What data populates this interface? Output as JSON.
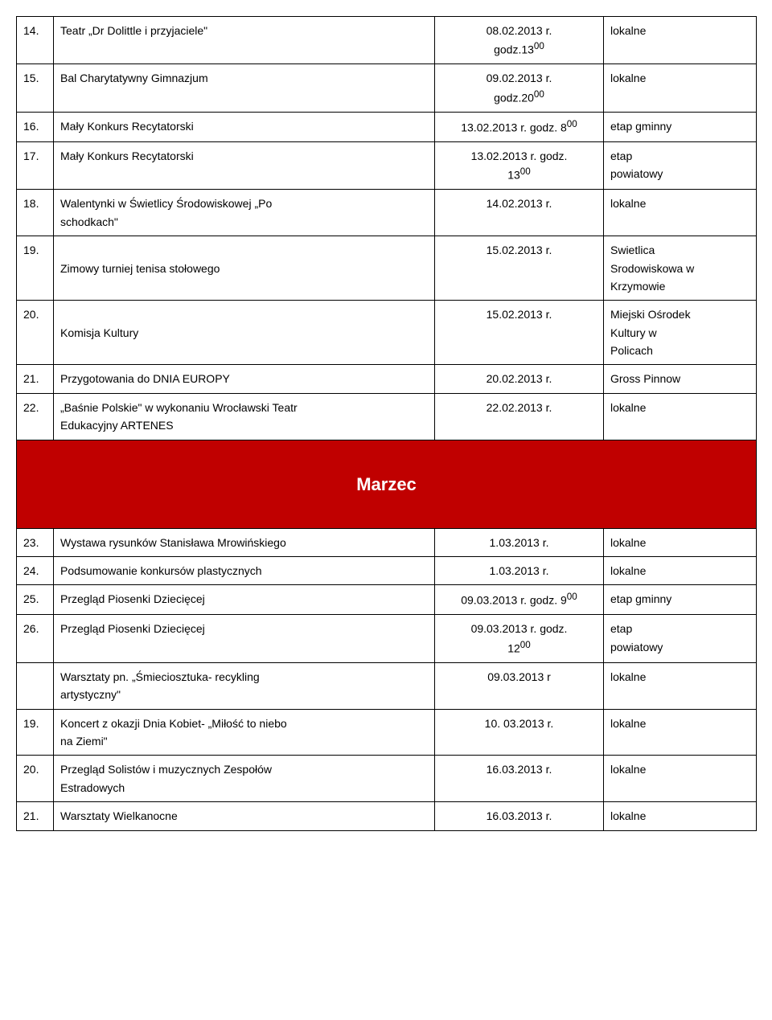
{
  "colors": {
    "header_bg": "#c00000",
    "header_fg": "#ffffff",
    "border": "#000000",
    "page_bg": "#ffffff",
    "text": "#000000"
  },
  "month_header": "Marzec",
  "rows_top": [
    {
      "num": "14.",
      "desc": "Teatr „Dr Dolittle i przyjaciele\"",
      "date1": "08.02.2013 r.",
      "date2": "godz.13",
      "date2_sup": "00",
      "note": "lokalne"
    },
    {
      "num": "15.",
      "desc": "Bal Charytatywny Gimnazjum",
      "date1": "09.02.2013 r.",
      "date2": "godz.20",
      "date2_sup": "00",
      "note": "lokalne"
    },
    {
      "num": "16.",
      "desc": "Mały Konkurs Recytatorski",
      "date1": "13.02.2013 r. godz. 8",
      "date1_sup": "00",
      "note": "etap gminny"
    },
    {
      "num": "17.",
      "desc": "Mały Konkurs Recytatorski",
      "date1": "13.02.2013 r. godz.",
      "date2": "13",
      "date2_sup": "00",
      "note1": "etap",
      "note2": "powiatowy"
    },
    {
      "num": "18.",
      "desc1": "Walentynki w Świetlicy Środowiskowej „Po",
      "desc2": "schodkach\"",
      "date1": "14.02.2013 r.",
      "note": "lokalne"
    },
    {
      "num": "19.",
      "desc": "Zimowy turniej tenisa stołowego",
      "date1": "15.02.2013 r.",
      "note1": "Swietlica",
      "note2": "Srodowiskowa w",
      "note3": "Krzymowie"
    },
    {
      "num": "20.",
      "desc": "Komisja Kultury",
      "date1": "15.02.2013 r.",
      "note1": "Miejski Ośrodek",
      "note2": "Kultury w",
      "note3": "Policach"
    },
    {
      "num": "21.",
      "desc": "Przygotowania do DNIA EUROPY",
      "date1": "20.02.2013 r.",
      "note": "Gross Pinnow"
    },
    {
      "num": "22.",
      "desc1": "„Baśnie Polskie\" w wykonaniu Wrocławski Teatr",
      "desc2": "Edukacyjny ARTENES",
      "date1": "22.02.2013 r.",
      "note": "lokalne"
    }
  ],
  "rows_bottom": [
    {
      "num": "23.",
      "desc": "Wystawa rysunków Stanisława Mrowińskiego",
      "date1": "1.03.2013 r.",
      "note": "lokalne"
    },
    {
      "num": "24.",
      "desc": "Podsumowanie konkursów plastycznych",
      "date1": "1.03.2013 r.",
      "note": "lokalne"
    },
    {
      "num": "25.",
      "desc": "Przegląd Piosenki Dziecięcej",
      "date1": "09.03.2013 r. godz. 9",
      "date1_sup": "00",
      "note": "etap gminny"
    },
    {
      "num": "26.",
      "desc": "Przegląd Piosenki Dziecięcej",
      "date1": "09.03.2013 r. godz.",
      "date2": "12",
      "date2_sup": "00",
      "note1": "etap",
      "note2": "powiatowy"
    },
    {
      "num": "",
      "desc1": "Warsztaty pn. „Śmieciosztuka- recykling",
      "desc2": "artystyczny\"",
      "date1": "09.03.2013 r",
      "note": "lokalne"
    },
    {
      "num": "19.",
      "desc1": "Koncert z okazji Dnia Kobiet- „Miłość to niebo",
      "desc2": "na Ziemi\"",
      "date1": "10. 03.2013 r.",
      "note": "lokalne"
    },
    {
      "num": "20.",
      "desc1": "Przegląd Solistów i muzycznych Zespołów",
      "desc2": "Estradowych",
      "date1": "16.03.2013 r.",
      "note": "lokalne"
    },
    {
      "num": "21.",
      "desc": "Warsztaty Wielkanocne",
      "date1": "16.03.2013 r.",
      "note": "lokalne"
    }
  ]
}
